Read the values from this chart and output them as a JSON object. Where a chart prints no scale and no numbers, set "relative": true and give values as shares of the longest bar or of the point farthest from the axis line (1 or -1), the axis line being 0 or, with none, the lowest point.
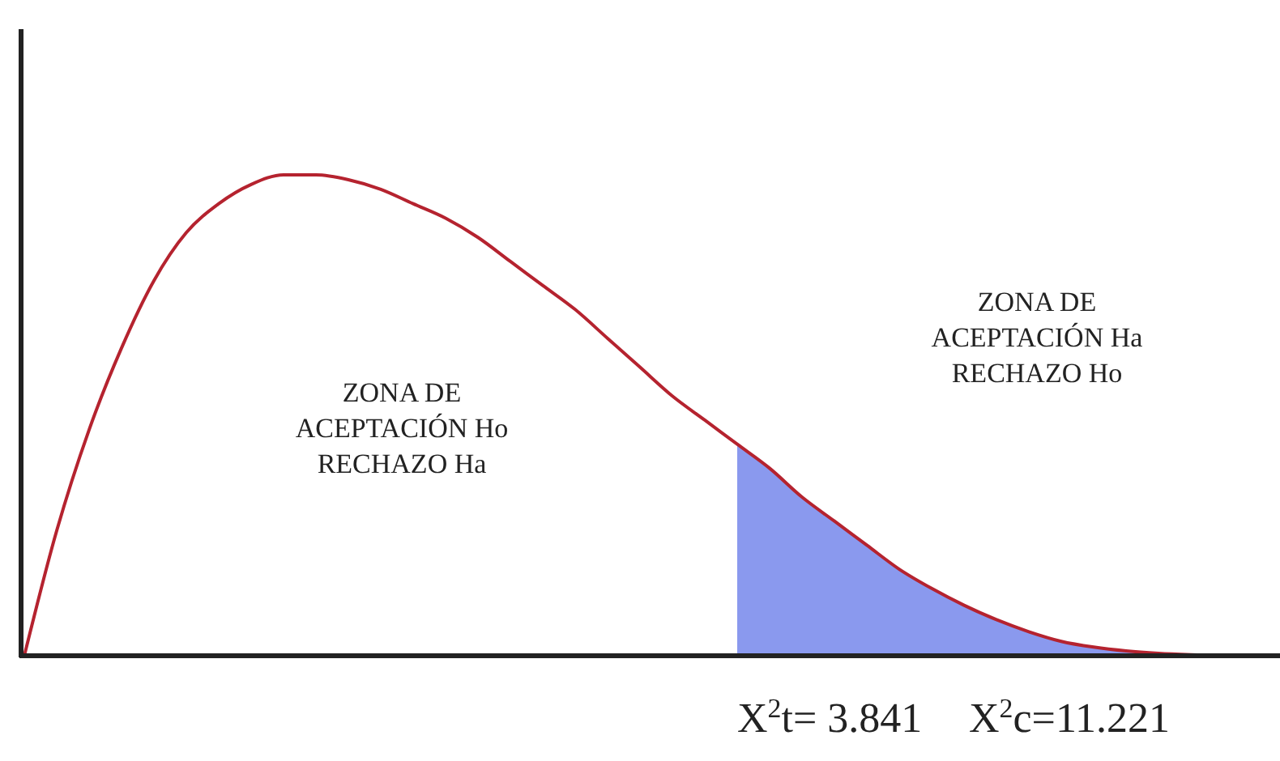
{
  "chart_data": {
    "type": "line",
    "relative": true,
    "categories": [
      null,
      null,
      null,
      null,
      null,
      null,
      null,
      null,
      null,
      null,
      null,
      null,
      null,
      null,
      null,
      null,
      null,
      null,
      null,
      null,
      null,
      null,
      null,
      null,
      null,
      null,
      null,
      null,
      null,
      null,
      null,
      null,
      null,
      null,
      null,
      null,
      null,
      null,
      null
    ],
    "series": [
      {
        "type": "area",
        "color": "#8a99ee",
        "values": [
          null,
          null,
          null,
          null,
          null,
          null,
          null,
          null,
          null,
          null,
          null,
          null,
          null,
          null,
          null,
          null,
          null,
          null,
          null,
          null,
          null,
          null,
          0.44,
          0.39,
          0.33,
          0.28,
          0.23,
          0.18,
          0.14,
          0.105,
          0.075,
          0.05,
          0.03,
          0.018,
          0.01,
          0.005,
          0.002,
          0,
          null
        ]
      },
      {
        "color": "#b5232f",
        "values": [
          0,
          0.26,
          0.47,
          0.64,
          0.78,
          0.88,
          0.94,
          0.98,
          1,
          1,
          0.99,
          0.97,
          0.94,
          0.91,
          0.87,
          0.82,
          0.77,
          0.72,
          0.66,
          0.6,
          0.54,
          0.49,
          0.44,
          0.39,
          0.33,
          0.28,
          0.23,
          0.18,
          0.14,
          0.105,
          0.075,
          0.05,
          0.03,
          0.018,
          0.01,
          0.005,
          0.002,
          0,
          null
        ]
      }
    ],
    "annotations": [
      "ZONA DE\nACEPTACIÓN Ho\nRECHAZO Ha",
      "ZONA DE\nACEPTACIÓN Ha\nRECHAZO Ho",
      "X$^{2}$t= 3.841",
      "X$^{2}$c=11.221"
    ]
  }
}
